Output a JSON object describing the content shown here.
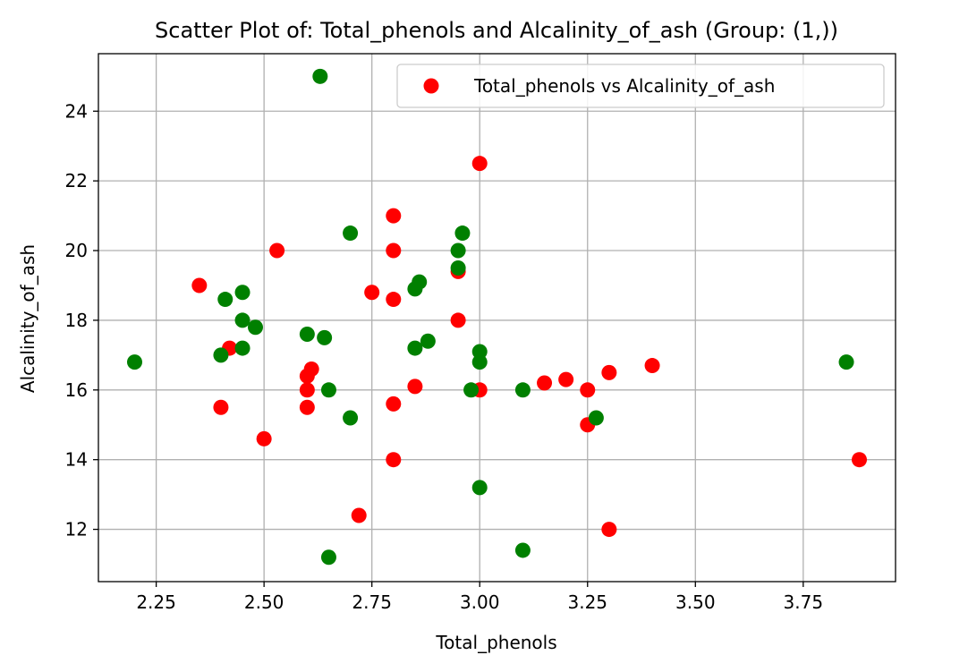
{
  "chart_data": {
    "type": "scatter",
    "title": "Scatter Plot of: Total_phenols and Alcalinity_of_ash (Group: (1,))",
    "xlabel": "Total_phenols",
    "ylabel": "Alcalinity_of_ash",
    "xlim": [
      2.116,
      3.964
    ],
    "ylim": [
      10.5,
      25.65
    ],
    "xticks": [
      2.25,
      2.5,
      2.75,
      3.0,
      3.25,
      3.5,
      3.75
    ],
    "xtick_labels": [
      "2.25",
      "2.50",
      "2.75",
      "3.00",
      "3.25",
      "3.50",
      "3.75"
    ],
    "yticks": [
      12,
      14,
      16,
      18,
      20,
      22,
      24
    ],
    "ytick_labels": [
      "12",
      "14",
      "16",
      "18",
      "20",
      "22",
      "24"
    ],
    "grid": true,
    "legend": {
      "position": "top-right",
      "entries": [
        "Total_phenols vs Alcalinity_of_ash"
      ]
    },
    "colors": {
      "red": "#ff0000",
      "green": "#008000"
    },
    "series": [
      {
        "name": "Total_phenols vs Alcalinity_of_ash",
        "points": [
          {
            "x": 2.35,
            "y": 19.0,
            "color": "red"
          },
          {
            "x": 2.42,
            "y": 17.2,
            "color": "red"
          },
          {
            "x": 2.4,
            "y": 15.5,
            "color": "red"
          },
          {
            "x": 2.53,
            "y": 20.0,
            "color": "red"
          },
          {
            "x": 2.5,
            "y": 14.6,
            "color": "red"
          },
          {
            "x": 2.6,
            "y": 16.4,
            "color": "red"
          },
          {
            "x": 2.61,
            "y": 16.6,
            "color": "red"
          },
          {
            "x": 2.6,
            "y": 16.0,
            "color": "red"
          },
          {
            "x": 2.6,
            "y": 15.5,
            "color": "red"
          },
          {
            "x": 2.72,
            "y": 12.4,
            "color": "red"
          },
          {
            "x": 2.75,
            "y": 18.8,
            "color": "red"
          },
          {
            "x": 2.8,
            "y": 21.0,
            "color": "red"
          },
          {
            "x": 2.8,
            "y": 20.0,
            "color": "red"
          },
          {
            "x": 2.8,
            "y": 18.6,
            "color": "red"
          },
          {
            "x": 2.8,
            "y": 15.6,
            "color": "red"
          },
          {
            "x": 2.8,
            "y": 14.0,
            "color": "red"
          },
          {
            "x": 2.85,
            "y": 16.1,
            "color": "red"
          },
          {
            "x": 2.95,
            "y": 19.4,
            "color": "red"
          },
          {
            "x": 2.95,
            "y": 18.0,
            "color": "red"
          },
          {
            "x": 3.0,
            "y": 22.5,
            "color": "red"
          },
          {
            "x": 3.0,
            "y": 16.0,
            "color": "red"
          },
          {
            "x": 3.15,
            "y": 16.2,
            "color": "red"
          },
          {
            "x": 3.2,
            "y": 16.3,
            "color": "red"
          },
          {
            "x": 3.25,
            "y": 16.0,
            "color": "red"
          },
          {
            "x": 3.25,
            "y": 15.0,
            "color": "red"
          },
          {
            "x": 3.3,
            "y": 16.5,
            "color": "red"
          },
          {
            "x": 3.3,
            "y": 12.0,
            "color": "red"
          },
          {
            "x": 3.4,
            "y": 16.7,
            "color": "red"
          },
          {
            "x": 3.88,
            "y": 14.0,
            "color": "red"
          },
          {
            "x": 2.2,
            "y": 16.8,
            "color": "green"
          },
          {
            "x": 2.4,
            "y": 17.0,
            "color": "green"
          },
          {
            "x": 2.41,
            "y": 18.6,
            "color": "green"
          },
          {
            "x": 2.45,
            "y": 18.8,
            "color": "green"
          },
          {
            "x": 2.45,
            "y": 18.0,
            "color": "green"
          },
          {
            "x": 2.45,
            "y": 17.2,
            "color": "green"
          },
          {
            "x": 2.48,
            "y": 17.8,
            "color": "green"
          },
          {
            "x": 2.6,
            "y": 17.6,
            "color": "green"
          },
          {
            "x": 2.63,
            "y": 25.0,
            "color": "green"
          },
          {
            "x": 2.64,
            "y": 17.5,
            "color": "green"
          },
          {
            "x": 2.65,
            "y": 16.0,
            "color": "green"
          },
          {
            "x": 2.65,
            "y": 11.2,
            "color": "green"
          },
          {
            "x": 2.7,
            "y": 20.5,
            "color": "green"
          },
          {
            "x": 2.7,
            "y": 15.2,
            "color": "green"
          },
          {
            "x": 2.85,
            "y": 18.9,
            "color": "green"
          },
          {
            "x": 2.86,
            "y": 19.1,
            "color": "green"
          },
          {
            "x": 2.85,
            "y": 17.2,
            "color": "green"
          },
          {
            "x": 2.88,
            "y": 17.4,
            "color": "green"
          },
          {
            "x": 2.95,
            "y": 20.0,
            "color": "green"
          },
          {
            "x": 2.96,
            "y": 20.5,
            "color": "green"
          },
          {
            "x": 2.95,
            "y": 19.5,
            "color": "green"
          },
          {
            "x": 2.98,
            "y": 16.0,
            "color": "green"
          },
          {
            "x": 3.0,
            "y": 17.1,
            "color": "green"
          },
          {
            "x": 3.0,
            "y": 16.8,
            "color": "green"
          },
          {
            "x": 3.0,
            "y": 13.2,
            "color": "green"
          },
          {
            "x": 3.1,
            "y": 16.0,
            "color": "green"
          },
          {
            "x": 3.1,
            "y": 11.4,
            "color": "green"
          },
          {
            "x": 3.27,
            "y": 15.2,
            "color": "green"
          },
          {
            "x": 3.85,
            "y": 16.8,
            "color": "green"
          }
        ]
      }
    ]
  }
}
